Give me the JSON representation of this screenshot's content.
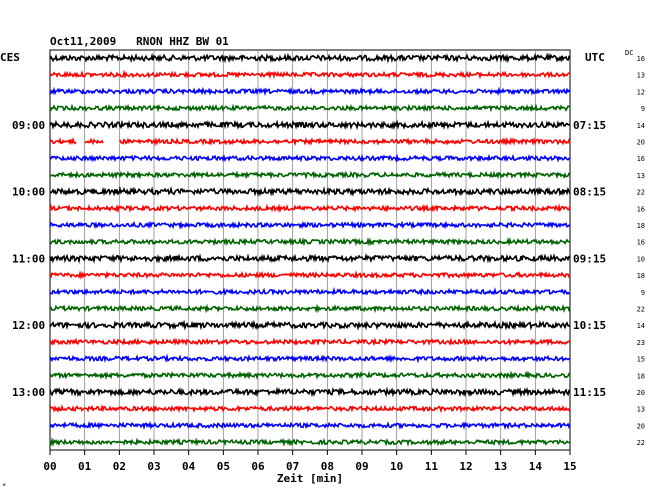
{
  "chart_data": {
    "type": "line",
    "title": "Oct11,2009   RNON HHZ BW 01",
    "left_timezone": "CES",
    "right_timezone": "UTC",
    "dc_header": "DC",
    "xlabel": "Zeit [min]",
    "xlim": [
      0,
      15
    ],
    "x_ticks": [
      "00",
      "01",
      "02",
      "03",
      "04",
      "05",
      "06",
      "07",
      "08",
      "09",
      "10",
      "11",
      "12",
      "13",
      "14",
      "15"
    ],
    "trace_colors": [
      "#000000",
      "#ff0000",
      "#0000ff",
      "#006400"
    ],
    "traces": [
      {
        "dc": "16",
        "left_time": "",
        "right_time": ""
      },
      {
        "dc": "13",
        "left_time": "",
        "right_time": ""
      },
      {
        "dc": "12",
        "left_time": "",
        "right_time": ""
      },
      {
        "dc": "9",
        "left_time": "",
        "right_time": ""
      },
      {
        "dc": "14",
        "left_time": "09:00",
        "right_time": "07:15"
      },
      {
        "dc": "20",
        "left_time": "",
        "right_time": "",
        "gaps": [
          [
            0.75,
            1.0
          ],
          [
            1.55,
            2.0
          ]
        ]
      },
      {
        "dc": "16",
        "left_time": "",
        "right_time": ""
      },
      {
        "dc": "13",
        "left_time": "",
        "right_time": ""
      },
      {
        "dc": "22",
        "left_time": "10:00",
        "right_time": "08:15"
      },
      {
        "dc": "16",
        "left_time": "",
        "right_time": ""
      },
      {
        "dc": "18",
        "left_time": "",
        "right_time": ""
      },
      {
        "dc": "16",
        "left_time": "",
        "right_time": ""
      },
      {
        "dc": "10",
        "left_time": "11:00",
        "right_time": "09:15"
      },
      {
        "dc": "18",
        "left_time": "",
        "right_time": ""
      },
      {
        "dc": "9",
        "left_time": "",
        "right_time": ""
      },
      {
        "dc": "22",
        "left_time": "",
        "right_time": ""
      },
      {
        "dc": "14",
        "left_time": "12:00",
        "right_time": "10:15"
      },
      {
        "dc": "23",
        "left_time": "",
        "right_time": ""
      },
      {
        "dc": "15",
        "left_time": "",
        "right_time": ""
      },
      {
        "dc": "18",
        "left_time": "",
        "right_time": ""
      },
      {
        "dc": "20",
        "left_time": "13:00",
        "right_time": "11:15"
      },
      {
        "dc": "13",
        "left_time": "",
        "right_time": ""
      },
      {
        "dc": "20",
        "left_time": "",
        "right_time": ""
      },
      {
        "dc": "22",
        "left_time": "",
        "right_time": ""
      }
    ]
  }
}
